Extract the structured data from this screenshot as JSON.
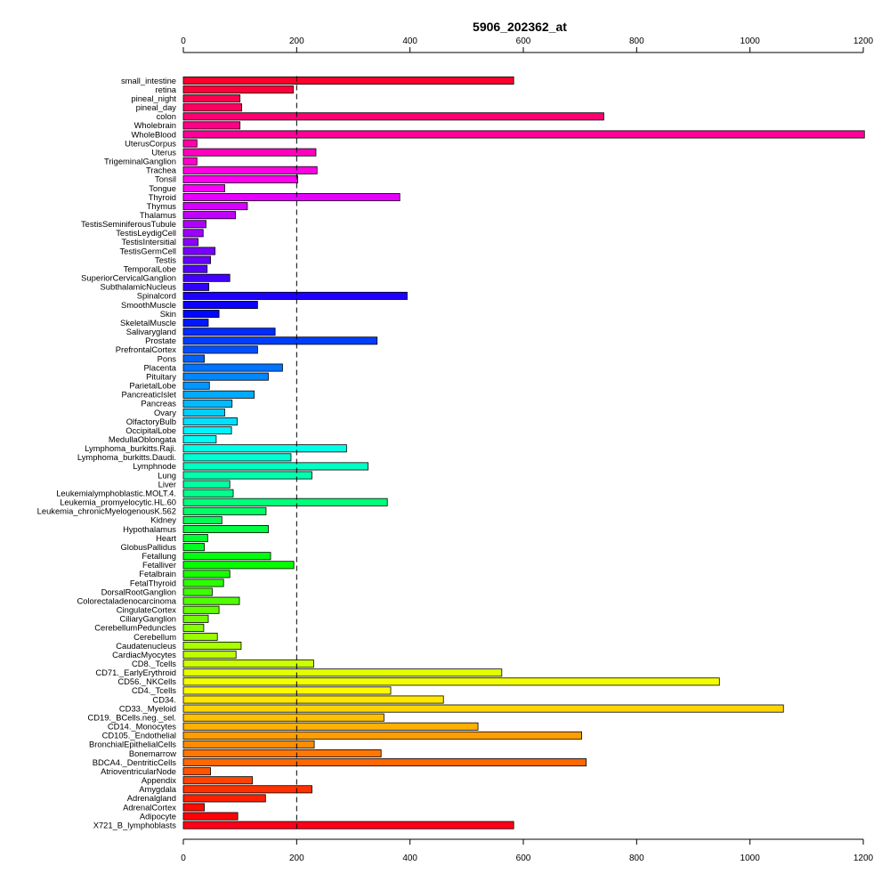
{
  "chart_data": {
    "type": "bar",
    "orientation": "horizontal",
    "title": "5906_202362_at",
    "xlabel": "",
    "ylabel": "",
    "xlim": [
      0,
      1200
    ],
    "ticks": [
      0,
      200,
      400,
      600,
      800,
      1000,
      1200
    ],
    "reference_line": 200,
    "grid": false,
    "legend": "none",
    "categories": [
      "small_intestine",
      "retina",
      "pineal_night",
      "pineal_day",
      "colon",
      "Wholebrain",
      "WholeBlood",
      "UterusCorpus",
      "Uterus",
      "TrigeminalGanglion",
      "Trachea",
      "Tonsil",
      "Tongue",
      "Thyroid",
      "Thymus",
      "Thalamus",
      "TestisSeminiferousTubule",
      "TestisLeydigCell",
      "TestisIntersitial",
      "TestisGermCell",
      "Testis",
      "TemporalLobe",
      "SuperiorCervicalGanglion",
      "SubthalamicNucleus",
      "Spinalcord",
      "SmoothMuscle",
      "Skin",
      "SkeletalMuscle",
      "Salivarygland",
      "Prostate",
      "PrefrontalCortex",
      "Pons",
      "Placenta",
      "Pituitary",
      "ParietalLobe",
      "PancreaticIslet",
      "Pancreas",
      "Ovary",
      "OlfactoryBulb",
      "OccipitalLobe",
      "MedullaOblongata",
      "Lymphoma_burkitts.Raji.",
      "Lymphoma_burkitts.Daudi.",
      "Lymphnode",
      "Lung",
      "Liver",
      "Leukemialymphoblastic.MOLT.4.",
      "Leukemia_promyelocytic.HL.60",
      "Leukemia_chronicMyelogenousK.562",
      "Kidney",
      "Hypothalamus",
      "Heart",
      "GlobusPallidus",
      "Fetallung",
      "Fetalliver",
      "Fetalbrain",
      "FetalThyroid",
      "DorsalRootGanglion",
      "Colorectaladenocarcinoma",
      "CingulateCortex",
      "CiliaryGanglion",
      "CerebellumPeduncles",
      "Cerebellum",
      "Caudatenucleus",
      "CardiacMyocytes",
      "CD8._Tcells",
      "CD71._EarlyErythroid",
      "CD56._NKCells",
      "CD4._Tcells",
      "CD34.",
      "CD33._Myeloid",
      "CD19._BCells.neg._sel.",
      "CD14._Monocytes",
      "CD105._Endothelial",
      "BronchialEpithelialCells",
      "Bonemarrow",
      "BDCA4._DentriticCells",
      "AtrioventricularNode",
      "Appendix",
      "Amygdala",
      "Adrenalgland",
      "AdrenalCortex",
      "Adipocyte",
      "X721_B_lymphoblasts"
    ],
    "values": [
      583,
      194,
      100,
      103,
      742,
      100,
      1202,
      24,
      234,
      24,
      236,
      202,
      73,
      382,
      113,
      92,
      40,
      35,
      26,
      56,
      48,
      42,
      82,
      45,
      395,
      131,
      63,
      44,
      162,
      342,
      131,
      37,
      175,
      150,
      46,
      125,
      86,
      73,
      95,
      85,
      58,
      288,
      190,
      326,
      227,
      82,
      88,
      360,
      146,
      68,
      150,
      43,
      37,
      154,
      195,
      82,
      71,
      51,
      99,
      63,
      44,
      36,
      60,
      102,
      93,
      230,
      562,
      946,
      366,
      459,
      1059,
      354,
      520,
      703,
      231,
      349,
      711,
      48,
      122,
      227,
      145,
      37,
      96,
      583
    ]
  }
}
